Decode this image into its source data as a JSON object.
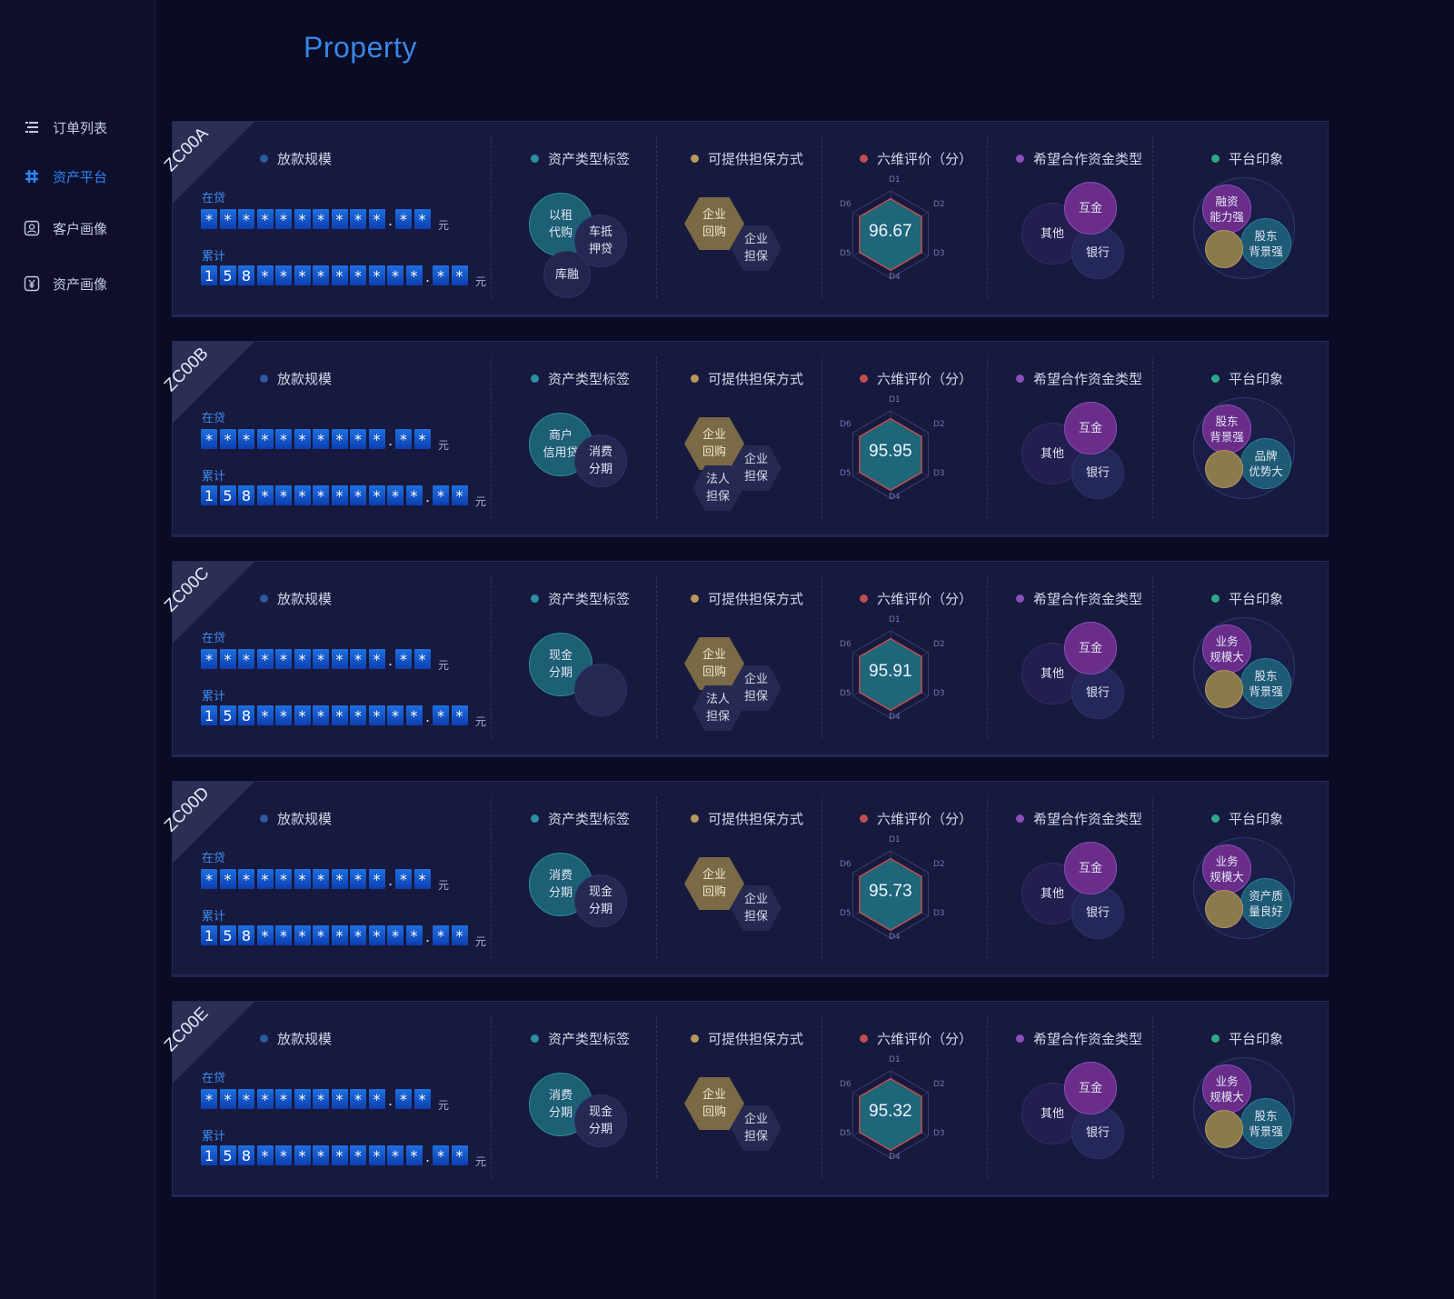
{
  "sidebar": {
    "items": [
      {
        "label": "订单列表",
        "icon": "list-icon",
        "active": false
      },
      {
        "label": "资产平台",
        "icon": "grid-icon",
        "active": true
      },
      {
        "label": "客户画像",
        "icon": "profile-icon",
        "active": false
      },
      {
        "label": "资产画像",
        "icon": "yuan-icon",
        "active": false
      }
    ]
  },
  "page": {
    "title": "Property"
  },
  "labels": {
    "loan_scale": "放款规模",
    "asset_type": "资产类型标签",
    "guarantee": "可提供担保方式",
    "six_dim": "六维评价（分）",
    "fund_type": "希望合作资金类型",
    "impression": "平台印象",
    "in_loan": "在贷",
    "cumulative": "累计",
    "unit": "元",
    "radar_axes": [
      "D1",
      "D2",
      "D3",
      "D4",
      "D5",
      "D6"
    ]
  },
  "colors": {
    "accent": "#2f86f6",
    "dot_loan": "#2c5aa0",
    "dot_asset": "#2a8fa0",
    "dot_guarantee": "#b8975a",
    "dot_six": "#c0504d",
    "dot_fund": "#8a4fb8",
    "dot_impression": "#2fa88a"
  },
  "cards": [
    {
      "id": "ZC00A",
      "in_loan_digits": "**********.**",
      "cumulative_digits": "158*********.**",
      "asset_tags": [
        "以租\n代购",
        "车抵\n押贷",
        "库融"
      ],
      "guarantee": [
        "企业\n回购",
        "企业\n担保"
      ],
      "score": "96.67",
      "fund_types": [
        "互金",
        "其他",
        "银行"
      ],
      "impression": [
        "融资\n能力强",
        "股东\n背景强"
      ]
    },
    {
      "id": "ZC00B",
      "in_loan_digits": "**********.**",
      "cumulative_digits": "158*********.**",
      "asset_tags": [
        "商户\n信用贷",
        "消费\n分期"
      ],
      "guarantee": [
        "企业\n回购",
        "企业\n担保",
        "法人\n担保"
      ],
      "score": "95.95",
      "fund_types": [
        "互金",
        "其他",
        "银行"
      ],
      "impression": [
        "股东\n背景强",
        "品牌\n优势大"
      ]
    },
    {
      "id": "ZC00C",
      "in_loan_digits": "**********.**",
      "cumulative_digits": "158*********.**",
      "asset_tags": [
        "现金\n分期"
      ],
      "guarantee": [
        "企业\n回购",
        "企业\n担保",
        "法人\n担保"
      ],
      "score": "95.91",
      "fund_types": [
        "互金",
        "其他",
        "银行"
      ],
      "impression": [
        "业务\n规模大",
        "股东\n背景强"
      ]
    },
    {
      "id": "ZC00D",
      "in_loan_digits": "**********.**",
      "cumulative_digits": "158*********.**",
      "asset_tags": [
        "消费\n分期",
        "现金\n分期"
      ],
      "guarantee": [
        "企业\n回购",
        "企业\n担保"
      ],
      "score": "95.73",
      "fund_types": [
        "互金",
        "其他",
        "银行"
      ],
      "impression": [
        "业务\n规模大",
        "资产质\n量良好"
      ]
    },
    {
      "id": "ZC00E",
      "in_loan_digits": "**********.**",
      "cumulative_digits": "158*********.**",
      "asset_tags": [
        "消费\n分期",
        "现金\n分期"
      ],
      "guarantee": [
        "企业\n回购",
        "企业\n担保"
      ],
      "score": "95.32",
      "fund_types": [
        "互金",
        "其他",
        "银行"
      ],
      "impression": [
        "业务\n规模大",
        "股东\n背景强"
      ]
    }
  ]
}
